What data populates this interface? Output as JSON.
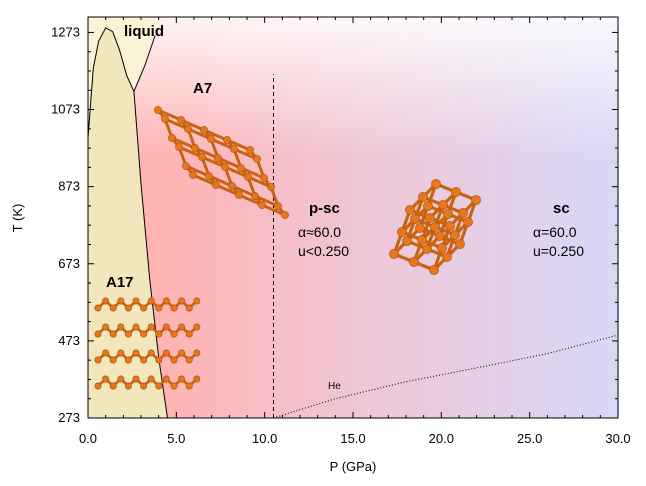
{
  "chart_data": {
    "type": "line",
    "xlabel": "P (GPa)",
    "ylabel": "T (K)",
    "xlim": [
      0,
      30
    ],
    "ylim": [
      273,
      1313
    ],
    "x_ticks": [
      "0.0",
      "5.0",
      "10.0",
      "15.0",
      "20.0",
      "25.0",
      "30.0"
    ],
    "y_ticks": [
      "273",
      "473",
      "673",
      "873",
      "1073",
      "1273"
    ],
    "grid": false,
    "background_colors": {
      "a17_region": "#f2e6bc",
      "liquid_region": "#fbf3d6",
      "a7_region": "#ffb3b3",
      "psc_region": "#eec8d8",
      "sc_region": "#d8d8f8"
    },
    "annotations": {
      "liquid": "liquid",
      "a7": "A7",
      "a17": "A17",
      "psc": "p-sc",
      "psc_alpha": "α≈60.0",
      "psc_u": "u<0.250",
      "sc": "sc",
      "sc_alpha": "α=60.0",
      "sc_u": "u=0.250",
      "he": "He"
    },
    "series": [
      {
        "style": "solid",
        "x": [
          0.0,
          0.3,
          0.6,
          1.0,
          1.4,
          1.8,
          2.2,
          2.6,
          3.0,
          3.5,
          4.0,
          4.5
        ],
        "y": [
          1000,
          1180,
          1250,
          1285,
          1275,
          1225,
          1160,
          1120,
          880,
          630,
          430,
          273
        ]
      },
      {
        "style": "solid",
        "x": [
          2.6,
          3.2,
          3.8
        ],
        "y": [
          1120,
          1185,
          1265
        ]
      },
      {
        "style": "dashed",
        "x": [
          10.5,
          10.5
        ],
        "y": [
          273,
          1165
        ]
      },
      {
        "style": "dotted",
        "x": [
          10.5,
          14,
          18,
          22,
          26,
          30
        ],
        "y": [
          273,
          323,
          367,
          403,
          440,
          488
        ]
      }
    ]
  }
}
